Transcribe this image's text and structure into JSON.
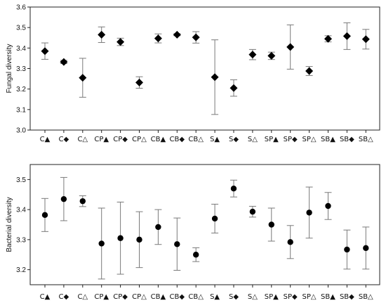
{
  "chart_data": [
    {
      "type": "scatter",
      "marker": "diamond",
      "ylabel": "Fungal diversity",
      "ylim": [
        3.0,
        3.6
      ],
      "yticks": [
        "3.0",
        "3.1",
        "3.2",
        "3.3",
        "3.4",
        "3.5",
        "3.6"
      ],
      "categories": [
        "C▲",
        "C◆",
        "C△",
        "CP▲",
        "CP◆",
        "CP△",
        "CB▲",
        "CB◆",
        "CB△",
        "S▲",
        "S◆",
        "S△",
        "SP▲",
        "SP◆",
        "SP△",
        "SB▲",
        "SB◆",
        "SB△"
      ],
      "values": [
        3.385,
        3.332,
        3.255,
        3.465,
        3.43,
        3.232,
        3.447,
        3.465,
        3.452,
        3.258,
        3.205,
        3.368,
        3.362,
        3.405,
        3.288,
        3.445,
        3.458,
        3.443
      ],
      "error": [
        0.04,
        0.008,
        0.095,
        0.038,
        0.018,
        0.028,
        0.022,
        0.005,
        0.028,
        0.182,
        0.04,
        0.025,
        0.018,
        0.108,
        0.022,
        0.015,
        0.065,
        0.048
      ],
      "grid": false
    },
    {
      "type": "scatter",
      "marker": "circle",
      "ylabel": "Bacterial diversity",
      "ylim": [
        3.15,
        3.55
      ],
      "yticks": [
        "3.2",
        "3.3",
        "3.4",
        "3.5"
      ],
      "ytick_values": [
        3.2,
        3.3,
        3.4,
        3.5
      ],
      "categories": [
        "C▲",
        "C◆",
        "C△",
        "CP▲",
        "CP◆",
        "CP△",
        "CB▲",
        "CB◆",
        "CB△",
        "S▲",
        "S◆",
        "S△",
        "SP▲",
        "SP◆",
        "SP△",
        "SB▲",
        "SB◆",
        "SB△"
      ],
      "values": [
        3.382,
        3.435,
        3.428,
        3.287,
        3.305,
        3.3,
        3.342,
        3.285,
        3.25,
        3.37,
        3.47,
        3.393,
        3.35,
        3.292,
        3.39,
        3.412,
        3.267,
        3.272
      ],
      "error": [
        0.055,
        0.072,
        0.018,
        0.118,
        0.12,
        0.093,
        0.058,
        0.087,
        0.023,
        0.048,
        0.028,
        0.018,
        0.055,
        0.055,
        0.085,
        0.045,
        0.065,
        0.07
      ],
      "grid": false
    }
  ]
}
